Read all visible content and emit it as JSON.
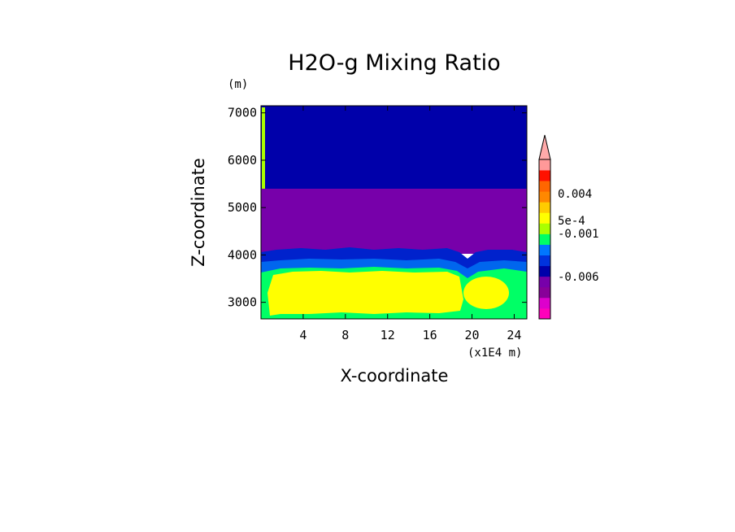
{
  "chart_data": {
    "type": "heatmap",
    "title": "H2O-g Mixing Ratio",
    "xlabel": "X-coordinate",
    "ylabel": "Z-coordinate",
    "x_unit": "(x1E4 m)",
    "y_unit": "(m)",
    "xlim": [
      0,
      25.2
    ],
    "ylim": [
      2650,
      7150
    ],
    "x_ticks": [
      "4",
      "8",
      "12",
      "16",
      "20",
      "24"
    ],
    "y_ticks": [
      "3000",
      "4000",
      "5000",
      "6000",
      "7000"
    ],
    "x_tick_values": [
      4,
      8,
      12,
      16,
      20,
      24
    ],
    "y_tick_values": [
      3000,
      4000,
      5000,
      6000,
      7000
    ],
    "colorbar": {
      "colors": [
        "#ff00bb",
        "#dd00cc",
        "#880099",
        "#7700aa",
        "#0000aa",
        "#0033dd",
        "#0077ff",
        "#00ff66",
        "#aaff00",
        "#ffff00",
        "#ffcc00",
        "#ff8800",
        "#ff6600",
        "#ff1100",
        "#ff9999"
      ],
      "labels": [
        "0.004",
        "5e-4",
        "-0.001",
        "-0.006"
      ],
      "extend": "max"
    },
    "regions": [
      {
        "name": "upper layer",
        "z_range": [
          5350,
          7150
        ],
        "color": "#0000aa"
      },
      {
        "name": "middle layer",
        "z_range": [
          4050,
          5350
        ],
        "color": "#7700aa"
      },
      {
        "name": "transition band",
        "z_range": [
          3800,
          4050
        ],
        "color": "#0033dd"
      },
      {
        "name": "lower band",
        "z_range": [
          2650,
          3800
        ],
        "color": "#00ff66"
      },
      {
        "name": "core",
        "z_range": [
          2800,
          3650
        ],
        "color": "#ffff00"
      }
    ]
  }
}
